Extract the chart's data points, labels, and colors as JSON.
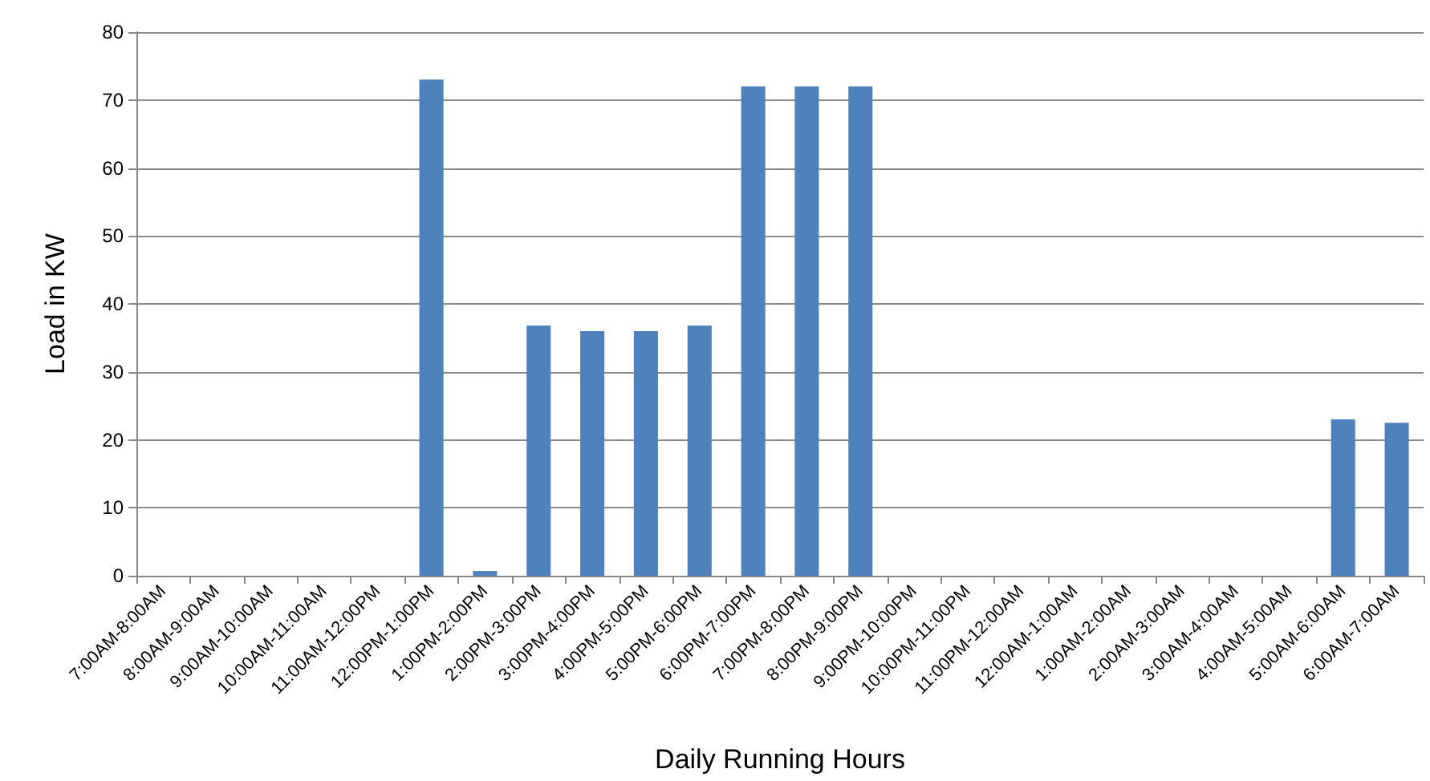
{
  "chart_data": {
    "type": "bar",
    "xlabel": "Daily Running Hours",
    "ylabel": "Load in KW",
    "categories": [
      "7:00AM-8:00AM",
      "8:00AM-9:00AM",
      "9:00AM-10:00AM",
      "10:00AM-11:00AM",
      "11:00AM-12:00PM",
      "12:00PM-1:00PM",
      "1:00PM-2:00PM",
      "2:00PM-3:00PM",
      "3:00PM-4:00PM",
      "4:00PM-5:00PM",
      "5:00PM-6:00PM",
      "6:00PM-7:00PM",
      "7:00PM-8:00PM",
      "8:00PM-9:00PM",
      "9:00PM-10:00PM",
      "10:00PM-11:00PM",
      "11:00PM-12:00AM",
      "12:00AM-1:00AM",
      "1:00AM-2:00AM",
      "2:00AM-3:00AM",
      "3:00AM-4:00AM",
      "4:00AM-5:00AM",
      "5:00AM-6:00AM",
      "6:00AM-7:00AM"
    ],
    "values": [
      0,
      0,
      0,
      0,
      0,
      73,
      0.7,
      36.8,
      36,
      36,
      36.8,
      72,
      72,
      72,
      0,
      0,
      0,
      0,
      0,
      0,
      0,
      0,
      23,
      22.5
    ],
    "color": "#4f81bd",
    "ylim": [
      0,
      80
    ],
    "yticks": [
      0,
      10,
      20,
      30,
      40,
      50,
      60,
      70,
      80
    ],
    "grid": "y"
  }
}
